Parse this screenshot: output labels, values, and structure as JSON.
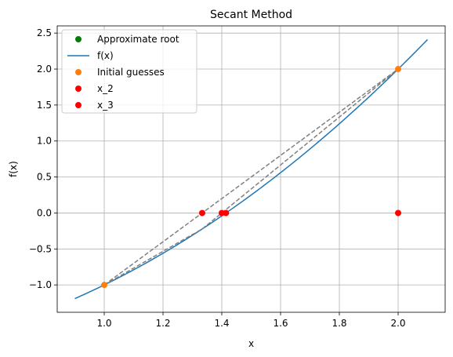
{
  "chart_data": {
    "type": "line",
    "title": "Secant Method",
    "xlabel": "x",
    "ylabel": "f(x)",
    "xlim": [
      0.84,
      2.16
    ],
    "ylim": [
      -1.38,
      2.6
    ],
    "grid": true,
    "legend_position": "top-left",
    "x_ticks": [
      1.0,
      1.2,
      1.4,
      1.6,
      1.8,
      2.0
    ],
    "x_tick_labels": [
      "1.0",
      "1.2",
      "1.4",
      "1.6",
      "1.8",
      "2.0"
    ],
    "y_ticks": [
      -1.0,
      -0.5,
      0.0,
      0.5,
      1.0,
      1.5,
      2.0,
      2.5
    ],
    "y_tick_labels": [
      "−1.0",
      "−0.5",
      "0.0",
      "0.5",
      "1.0",
      "1.5",
      "2.0",
      "2.5"
    ],
    "function_curve": {
      "name": "f(x)",
      "expression": "x^2 - 2",
      "x_range": [
        0.9,
        2.1
      ],
      "color": "#1f77b4"
    },
    "secant_lines": [
      {
        "x": [
          1.0,
          2.0
        ],
        "y": [
          -1.0,
          2.0
        ]
      },
      {
        "x": [
          1.0,
          1.3333
        ],
        "y": [
          -1.0,
          -0.2222
        ]
      },
      {
        "x": [
          1.3333,
          2.0
        ],
        "y": [
          -0.2222,
          2.0
        ]
      }
    ],
    "secant_line_color": "#808080",
    "series": [
      {
        "name": "Approximate root",
        "type": "scatter",
        "color": "#008000",
        "x": [],
        "y": []
      },
      {
        "name": "f(x)",
        "type": "line",
        "color": "#1f77b4"
      },
      {
        "name": "Initial guesses",
        "type": "scatter",
        "color": "#ff7f0e",
        "x": [
          1.0,
          2.0
        ],
        "y": [
          -1.0,
          2.0
        ]
      },
      {
        "name": "x_2",
        "type": "scatter",
        "color": "#ff0000",
        "x": [
          1.3333,
          1.4
        ],
        "y": [
          0.0,
          0.0
        ]
      },
      {
        "name": "x_3",
        "type": "scatter",
        "color": "#ff0000",
        "x": [
          1.4142,
          2.0
        ],
        "y": [
          0.0,
          0.0
        ]
      }
    ]
  }
}
